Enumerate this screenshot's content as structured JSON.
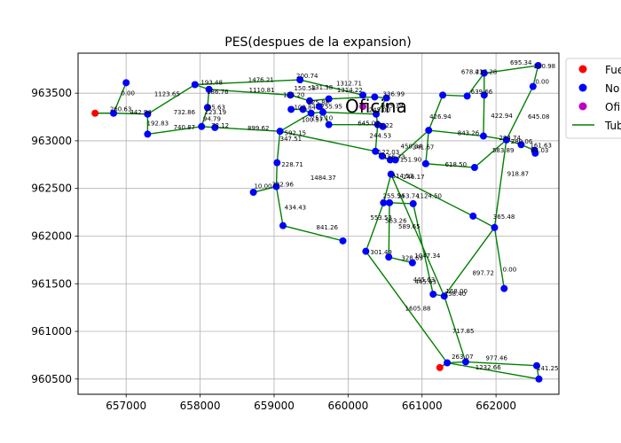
{
  "chart_data": {
    "type": "scatter",
    "title": "PES(despues de la expansion)",
    "xlabel": "",
    "ylabel": "",
    "xlim": [
      656350,
      662850
    ],
    "ylim": [
      960340,
      963920
    ],
    "xticks": [
      657000,
      658000,
      659000,
      660000,
      661000,
      662000
    ],
    "yticks": [
      960500,
      961000,
      961500,
      962000,
      962500,
      963000,
      963500
    ],
    "grid": true,
    "legend_placement": "outside-right-top",
    "legend": [
      {
        "label": "Fue",
        "marker": "circle",
        "color": "#ff0000"
      },
      {
        "label": "No",
        "marker": "circle",
        "color": "#0000ff"
      },
      {
        "label": "Ofi",
        "marker": "circle",
        "color": "#bf00bf"
      },
      {
        "label": "Tub",
        "marker": "line",
        "color": "#008000"
      }
    ],
    "office_label": "Oficina",
    "office_point": [
      660200,
      963360
    ],
    "sources": [
      [
        656580,
        963290
      ],
      [
        661240,
        960620
      ]
    ],
    "nodes": [
      [
        657000,
        963610
      ],
      [
        656830,
        963290
      ],
      [
        657290,
        963280
      ],
      [
        657290,
        963070
      ],
      [
        657930,
        963590
      ],
      [
        658120,
        963540
      ],
      [
        658100,
        963350
      ],
      [
        658020,
        963150
      ],
      [
        658200,
        963140
      ],
      [
        659080,
        963100
      ],
      [
        659040,
        962770
      ],
      [
        659030,
        962520
      ],
      [
        658720,
        962460
      ],
      [
        659120,
        962110
      ],
      [
        659930,
        961950
      ],
      [
        659350,
        963640
      ],
      [
        659220,
        963480
      ],
      [
        659230,
        963330
      ],
      [
        659390,
        963330
      ],
      [
        659480,
        963420
      ],
      [
        659610,
        963360
      ],
      [
        659740,
        963170
      ],
      [
        659740,
        963440
      ],
      [
        659500,
        963290
      ],
      [
        659660,
        963300
      ],
      [
        660200,
        963480
      ],
      [
        660360,
        963460
      ],
      [
        660520,
        963450
      ],
      [
        660380,
        963280
      ],
      [
        660400,
        963170
      ],
      [
        660470,
        963150
      ],
      [
        660370,
        962890
      ],
      [
        660460,
        962840
      ],
      [
        660570,
        962800
      ],
      [
        660640,
        962800
      ],
      [
        661050,
        962760
      ],
      [
        661090,
        963110
      ],
      [
        661280,
        963480
      ],
      [
        661610,
        963470
      ],
      [
        661840,
        963710
      ],
      [
        661840,
        963480
      ],
      [
        661830,
        963050
      ],
      [
        662140,
        963010
      ],
      [
        662340,
        962960
      ],
      [
        662520,
        962900
      ],
      [
        662530,
        962870
      ],
      [
        662500,
        963570
      ],
      [
        662570,
        963790
      ],
      [
        661710,
        962720
      ],
      [
        660580,
        962650
      ],
      [
        660480,
        962350
      ],
      [
        660560,
        962350
      ],
      [
        660880,
        962340
      ],
      [
        661690,
        962210
      ],
      [
        661980,
        962090
      ],
      [
        660240,
        961840
      ],
      [
        660550,
        961780
      ],
      [
        660870,
        961720
      ],
      [
        661150,
        961390
      ],
      [
        661300,
        961370
      ],
      [
        662110,
        961450
      ],
      [
        661340,
        960670
      ],
      [
        661590,
        960680
      ],
      [
        662550,
        960640
      ],
      [
        662580,
        960500
      ]
    ],
    "pipes": [
      [
        656580,
        963290,
        656830,
        963290
      ],
      [
        656830,
        963290,
        657000,
        963610
      ],
      [
        656830,
        963290,
        657290,
        963280
      ],
      [
        657290,
        963280,
        657290,
        963070
      ],
      [
        657290,
        963280,
        657930,
        963590
      ],
      [
        657930,
        963590,
        658120,
        963540
      ],
      [
        657290,
        963070,
        658020,
        963150
      ],
      [
        658020,
        963150,
        658200,
        963140
      ],
      [
        658200,
        963140,
        659080,
        963100
      ],
      [
        658100,
        963350,
        658120,
        963540
      ],
      [
        658100,
        963350,
        658020,
        963150
      ],
      [
        658120,
        963540,
        659220,
        963480
      ],
      [
        657930,
        963590,
        659350,
        963640
      ],
      [
        659350,
        963640,
        660200,
        963480
      ],
      [
        659220,
        963480,
        659480,
        963420
      ],
      [
        659480,
        963420,
        659740,
        963440
      ],
      [
        659740,
        963440,
        660360,
        963460
      ],
      [
        660360,
        963460,
        660520,
        963450
      ],
      [
        659230,
        963330,
        659390,
        963330
      ],
      [
        659390,
        963330,
        659500,
        963290
      ],
      [
        659500,
        963290,
        659660,
        963300
      ],
      [
        659660,
        963300,
        660380,
        963280
      ],
      [
        659610,
        963360,
        659740,
        963170
      ],
      [
        659740,
        963170,
        660400,
        963170
      ],
      [
        659080,
        963100,
        659500,
        963290
      ],
      [
        659080,
        963100,
        659040,
        962770
      ],
      [
        659040,
        962770,
        659030,
        962520
      ],
      [
        659030,
        962520,
        658720,
        962460
      ],
      [
        659030,
        962520,
        659120,
        962110
      ],
      [
        659120,
        962110,
        659930,
        961950
      ],
      [
        659080,
        963100,
        660370,
        962890
      ],
      [
        660380,
        963280,
        660400,
        963170
      ],
      [
        660400,
        963170,
        660470,
        963150
      ],
      [
        660400,
        963170,
        660370,
        962890
      ],
      [
        660370,
        962890,
        660460,
        962840
      ],
      [
        660460,
        962840,
        660570,
        962800
      ],
      [
        660570,
        962800,
        660640,
        962800
      ],
      [
        660640,
        962800,
        661090,
        963110
      ],
      [
        661090,
        963110,
        661050,
        962760
      ],
      [
        661050,
        962760,
        661710,
        962720
      ],
      [
        661090,
        963110,
        661280,
        963480
      ],
      [
        661280,
        963480,
        661610,
        963470
      ],
      [
        661610,
        963470,
        661840,
        963710
      ],
      [
        661840,
        963710,
        661840,
        963480
      ],
      [
        661840,
        963480,
        661830,
        963050
      ],
      [
        661090,
        963110,
        661830,
        963050
      ],
      [
        661830,
        963050,
        662140,
        963010
      ],
      [
        662140,
        963010,
        662340,
        962960
      ],
      [
        662340,
        962960,
        662520,
        962900
      ],
      [
        662520,
        962900,
        662530,
        962870
      ],
      [
        662140,
        963010,
        662500,
        963570
      ],
      [
        662500,
        963570,
        662570,
        963790
      ],
      [
        661840,
        963710,
        662570,
        963790
      ],
      [
        661710,
        962720,
        662140,
        963010
      ],
      [
        662140,
        963010,
        661980,
        962090
      ],
      [
        661980,
        962090,
        661690,
        962210
      ],
      [
        661690,
        962210,
        660580,
        962650
      ],
      [
        660580,
        962650,
        660480,
        962350
      ],
      [
        660480,
        962350,
        660560,
        962350
      ],
      [
        660560,
        962350,
        660880,
        962340
      ],
      [
        660480,
        962350,
        660240,
        961840
      ],
      [
        660560,
        962350,
        660550,
        961780
      ],
      [
        660550,
        961780,
        660870,
        961720
      ],
      [
        660880,
        962340,
        661150,
        961390
      ],
      [
        660580,
        962650,
        661300,
        961370
      ],
      [
        661300,
        961370,
        661150,
        961390
      ],
      [
        661980,
        962090,
        661300,
        961370
      ],
      [
        661980,
        962090,
        662110,
        961450
      ],
      [
        660240,
        961840,
        661340,
        960670
      ],
      [
        661300,
        961370,
        661590,
        960680
      ],
      [
        661340,
        960670,
        661590,
        960680
      ],
      [
        661240,
        960620,
        661340,
        960670
      ],
      [
        661590,
        960680,
        662550,
        960640
      ],
      [
        662550,
        960640,
        662580,
        960500
      ],
      [
        661340,
        960670,
        662580,
        960500
      ],
      [
        660520,
        963450,
        660380,
        963280
      ]
    ],
    "edge_labels": [
      {
        "x": 656780,
        "y": 963310,
        "text": "260.63"
      },
      {
        "x": 656930,
        "y": 963480,
        "text": "0.00"
      },
      {
        "x": 657050,
        "y": 963280,
        "text": "442.94"
      },
      {
        "x": 657280,
        "y": 963160,
        "text": "192.83"
      },
      {
        "x": 657380,
        "y": 963470,
        "text": "1123.65"
      },
      {
        "x": 657640,
        "y": 963280,
        "text": "732.86"
      },
      {
        "x": 657640,
        "y": 963120,
        "text": "740.87"
      },
      {
        "x": 658010,
        "y": 963590,
        "text": "193.48"
      },
      {
        "x": 658090,
        "y": 963490,
        "text": "186.76"
      },
      {
        "x": 658100,
        "y": 963330,
        "text": "95.63"
      },
      {
        "x": 658060,
        "y": 963280,
        "text": "223.19"
      },
      {
        "x": 658040,
        "y": 963210,
        "text": "94.79"
      },
      {
        "x": 658150,
        "y": 963140,
        "text": "73.12"
      },
      {
        "x": 658640,
        "y": 963110,
        "text": "899.62"
      },
      {
        "x": 658650,
        "y": 963620,
        "text": "1476.21"
      },
      {
        "x": 658660,
        "y": 963510,
        "text": "1110.81"
      },
      {
        "x": 659300,
        "y": 963660,
        "text": "200.74"
      },
      {
        "x": 659120,
        "y": 963460,
        "text": "125.20"
      },
      {
        "x": 659270,
        "y": 963530,
        "text": "150.58"
      },
      {
        "x": 659500,
        "y": 963540,
        "text": "131.38"
      },
      {
        "x": 659270,
        "y": 963330,
        "text": "109.84"
      },
      {
        "x": 659450,
        "y": 963380,
        "text": "325.88"
      },
      {
        "x": 659630,
        "y": 963340,
        "text": "255.95"
      },
      {
        "x": 659370,
        "y": 963200,
        "text": "100.57"
      },
      {
        "x": 659500,
        "y": 963220,
        "text": "251.10"
      },
      {
        "x": 659140,
        "y": 963060,
        "text": "592.15"
      },
      {
        "x": 659080,
        "y": 963000,
        "text": "347.51"
      },
      {
        "x": 659100,
        "y": 962730,
        "text": "228.71"
      },
      {
        "x": 658970,
        "y": 962520,
        "text": "332.96"
      },
      {
        "x": 658730,
        "y": 962500,
        "text": "10.00"
      },
      {
        "x": 659140,
        "y": 962280,
        "text": "434.43"
      },
      {
        "x": 659570,
        "y": 962070,
        "text": "841.26"
      },
      {
        "x": 659490,
        "y": 962590,
        "text": "1484.37"
      },
      {
        "x": 659840,
        "y": 963580,
        "text": "1312.71"
      },
      {
        "x": 659850,
        "y": 963510,
        "text": "1314.22"
      },
      {
        "x": 660470,
        "y": 963470,
        "text": "336.99"
      },
      {
        "x": 660450,
        "y": 963350,
        "text": "405.39"
      },
      {
        "x": 660280,
        "y": 963300,
        "text": "245.00"
      },
      {
        "x": 660130,
        "y": 963160,
        "text": "645.07"
      },
      {
        "x": 660370,
        "y": 963140,
        "text": "93.22"
      },
      {
        "x": 660290,
        "y": 963030,
        "text": "244.53"
      },
      {
        "x": 660400,
        "y": 962860,
        "text": "122.03"
      },
      {
        "x": 660480,
        "y": 962810,
        "text": "156.73"
      },
      {
        "x": 660710,
        "y": 962920,
        "text": "450.34"
      },
      {
        "x": 660870,
        "y": 962910,
        "text": "341.67"
      },
      {
        "x": 660700,
        "y": 962780,
        "text": "151.90"
      },
      {
        "x": 661100,
        "y": 963230,
        "text": "426.94"
      },
      {
        "x": 661310,
        "y": 962730,
        "text": "618.50"
      },
      {
        "x": 661480,
        "y": 963060,
        "text": "843.26"
      },
      {
        "x": 661530,
        "y": 963700,
        "text": "678.41"
      },
      {
        "x": 661660,
        "y": 963490,
        "text": "639.66"
      },
      {
        "x": 661720,
        "y": 963700,
        "text": "237.28"
      },
      {
        "x": 661930,
        "y": 963240,
        "text": "422.94"
      },
      {
        "x": 662190,
        "y": 963800,
        "text": "695.34"
      },
      {
        "x": 662510,
        "y": 963760,
        "text": "230.98"
      },
      {
        "x": 662530,
        "y": 963600,
        "text": "0.00"
      },
      {
        "x": 662430,
        "y": 963230,
        "text": "645.08"
      },
      {
        "x": 662040,
        "y": 963010,
        "text": "284.74"
      },
      {
        "x": 662200,
        "y": 962970,
        "text": "280.06"
      },
      {
        "x": 662460,
        "y": 962930,
        "text": "161.63"
      },
      {
        "x": 662470,
        "y": 962880,
        "text": "44.03"
      },
      {
        "x": 661950,
        "y": 962880,
        "text": "583.89"
      },
      {
        "x": 662150,
        "y": 962630,
        "text": "918.87"
      },
      {
        "x": 661960,
        "y": 962180,
        "text": "365.48"
      },
      {
        "x": 662090,
        "y": 961630,
        "text": "0.00"
      },
      {
        "x": 661680,
        "y": 961590,
        "text": "897.72"
      },
      {
        "x": 660920,
        "y": 962400,
        "text": "1124.50"
      },
      {
        "x": 660590,
        "y": 962610,
        "text": "314.53"
      },
      {
        "x": 660740,
        "y": 962600,
        "text": "246.17"
      },
      {
        "x": 660470,
        "y": 962400,
        "text": "255.54"
      },
      {
        "x": 660670,
        "y": 962400,
        "text": "253.74"
      },
      {
        "x": 660300,
        "y": 962170,
        "text": "553.53"
      },
      {
        "x": 660500,
        "y": 962140,
        "text": "563.26"
      },
      {
        "x": 660680,
        "y": 962080,
        "text": "589.65"
      },
      {
        "x": 660900,
        "y": 961770,
        "text": "1047.34"
      },
      {
        "x": 660300,
        "y": 961810,
        "text": "301.49"
      },
      {
        "x": 660720,
        "y": 961750,
        "text": "328.69"
      },
      {
        "x": 660880,
        "y": 961520,
        "text": "445.63"
      },
      {
        "x": 660900,
        "y": 961500,
        "text": "445.63"
      },
      {
        "x": 661320,
        "y": 961400,
        "text": "168.00"
      },
      {
        "x": 661300,
        "y": 961370,
        "text": "158.40"
      },
      {
        "x": 660770,
        "y": 961220,
        "text": "1605.88"
      },
      {
        "x": 661410,
        "y": 960980,
        "text": "717.85"
      },
      {
        "x": 661400,
        "y": 960710,
        "text": "263.07"
      },
      {
        "x": 661860,
        "y": 960700,
        "text": "977.46"
      },
      {
        "x": 661720,
        "y": 960600,
        "text": "1232.66"
      },
      {
        "x": 662550,
        "y": 960590,
        "text": "141.25"
      }
    ]
  }
}
